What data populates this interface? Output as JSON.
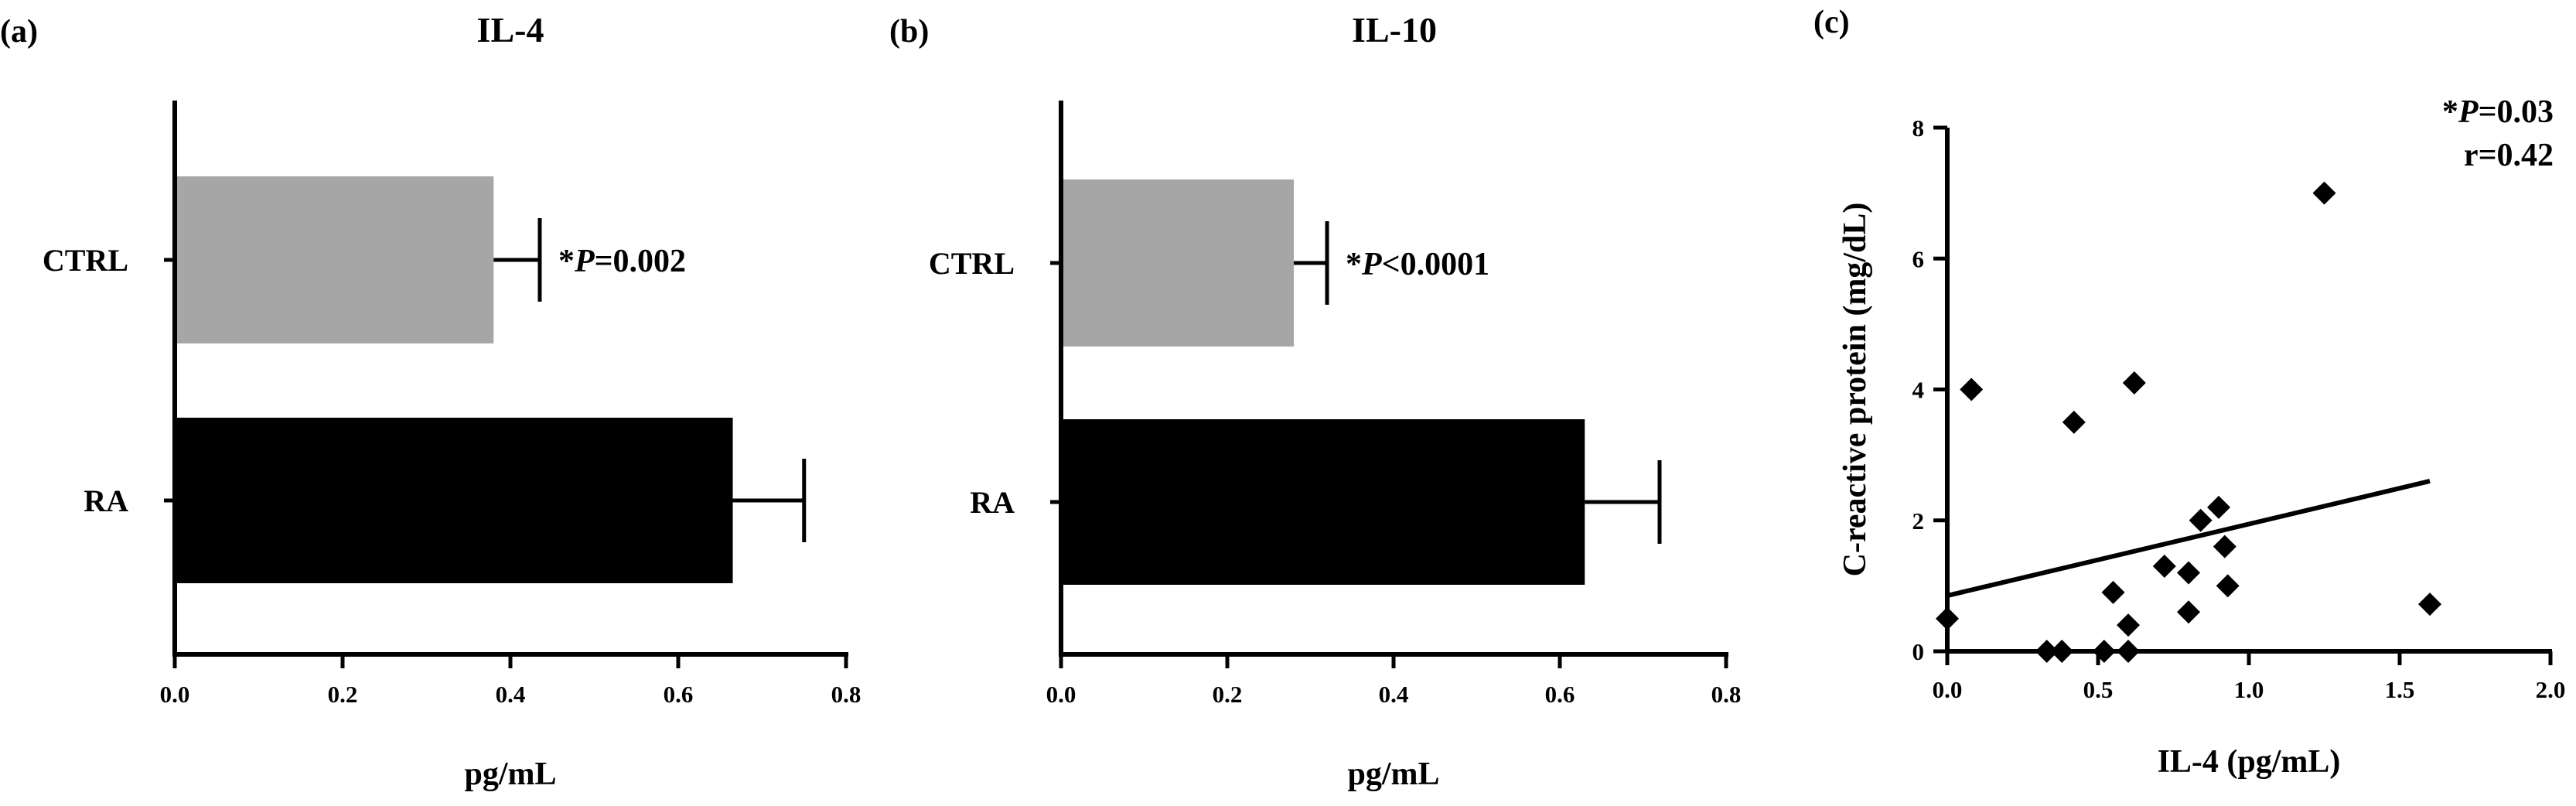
{
  "chart_data": [
    {
      "panel_label": "(a)",
      "type": "bar",
      "orientation": "horizontal",
      "title": "IL-4",
      "xlabel": "pg/mL",
      "ylabel": "",
      "xlim": [
        0,
        0.8
      ],
      "xticks": [
        "0.0",
        "0.2",
        "0.4",
        "0.6",
        "0.8"
      ],
      "categories": [
        "CTRL",
        "RA"
      ],
      "values": [
        0.38,
        0.665
      ],
      "errors": [
        0.055,
        0.085
      ],
      "colors": [
        "#a6a6a6",
        "#000000"
      ],
      "annotation_prefix": "*",
      "annotation_symbol": "P",
      "annotation_value": "=0.002",
      "grid": false
    },
    {
      "panel_label": "(b)",
      "type": "bar",
      "orientation": "horizontal",
      "title": "IL-10",
      "xlabel": "pg/mL",
      "ylabel": "",
      "xlim": [
        0,
        0.8
      ],
      "xticks": [
        "0.0",
        "0.2",
        "0.4",
        "0.6",
        "0.8"
      ],
      "categories": [
        "CTRL",
        "RA"
      ],
      "values": [
        0.28,
        0.63
      ],
      "errors": [
        0.04,
        0.09
      ],
      "colors": [
        "#a6a6a6",
        "#000000"
      ],
      "annotation_prefix": "*",
      "annotation_symbol": "P",
      "annotation_value": "<0.0001",
      "grid": false
    },
    {
      "panel_label": "(c)",
      "type": "scatter",
      "title": "",
      "xlabel": "IL-4 (pg/mL)",
      "ylabel": "C-reactive protein (mg/dL)",
      "xlim": [
        0,
        2
      ],
      "ylim": [
        0,
        8
      ],
      "xticks": [
        "0.0",
        "0.5",
        "1.0",
        "1.5",
        "2.0"
      ],
      "yticks": [
        "0",
        "2",
        "4",
        "6",
        "8"
      ],
      "points": [
        [
          0.0,
          0.5
        ],
        [
          0.08,
          4.0
        ],
        [
          0.33,
          0.0
        ],
        [
          0.38,
          0.0
        ],
        [
          0.42,
          3.5
        ],
        [
          0.52,
          0.0
        ],
        [
          0.55,
          0.9
        ],
        [
          0.6,
          0.4
        ],
        [
          0.6,
          0.0
        ],
        [
          0.62,
          4.1
        ],
        [
          0.72,
          1.3
        ],
        [
          0.8,
          1.2
        ],
        [
          0.8,
          0.6
        ],
        [
          0.84,
          2.0
        ],
        [
          0.9,
          2.2
        ],
        [
          0.92,
          1.6
        ],
        [
          0.93,
          1.0
        ],
        [
          1.25,
          7.0
        ],
        [
          1.6,
          0.72
        ]
      ],
      "fit_line": [
        [
          0.0,
          0.85
        ],
        [
          1.6,
          2.6
        ]
      ],
      "annotation_prefix": "*",
      "annotation_symbol": "P",
      "annotation_value": "=0.03",
      "annotation_r": "r=0.42",
      "grid": false
    }
  ]
}
